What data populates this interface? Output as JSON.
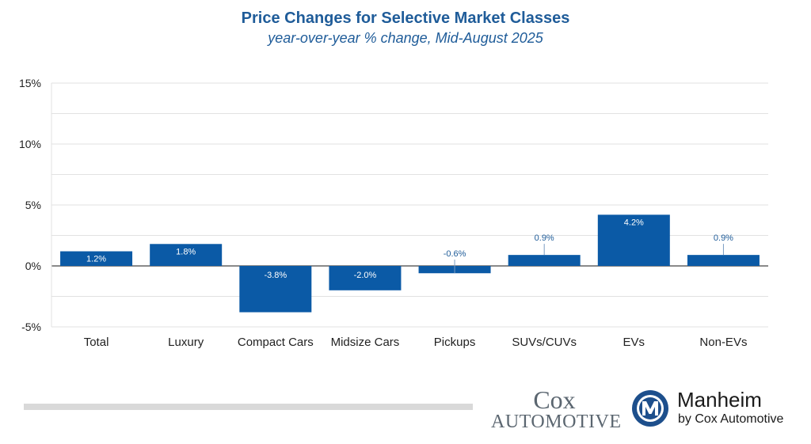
{
  "chart_data": {
    "type": "bar",
    "title": "Price Changes for Selective Market Classes",
    "subtitle": "year-over-year % change, Mid-August 2025",
    "categories": [
      "Total",
      "Luxury",
      "Compact Cars",
      "Midsize Cars",
      "Pickups",
      "SUVs/CUVs",
      "EVs",
      "Non-EVs"
    ],
    "values": [
      1.2,
      1.8,
      -3.8,
      -2.0,
      -0.6,
      0.9,
      4.2,
      0.9
    ],
    "data_labels": [
      "1.2%",
      "1.8%",
      "-3.8%",
      "-2.0%",
      "-0.6%",
      "0.9%",
      "4.2%",
      "0.9%"
    ],
    "y_ticks": [
      "15%",
      "10%",
      "5%",
      "0%",
      "-5%"
    ],
    "y_tick_values": [
      15,
      10,
      5,
      0,
      -5
    ],
    "ylim": [
      -5,
      15
    ],
    "minor_grid_values": [
      12.5,
      7.5,
      2.5,
      -2.5
    ],
    "grid": true,
    "legend": "none",
    "bar_color": "#0b5aa6",
    "label_color": "#1f5c99"
  },
  "logos": {
    "cox_top": "Cox",
    "cox_bottom": "AUTOMOTIVE",
    "manheim_name": "Manheim",
    "manheim_sub": "by Cox Automotive"
  }
}
